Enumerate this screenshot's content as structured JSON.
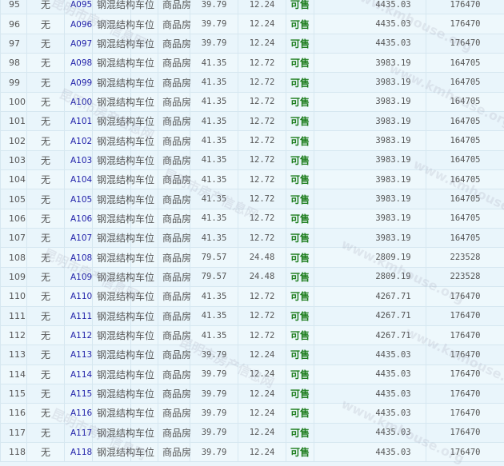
{
  "table": {
    "rows": [
      {
        "no": "95",
        "floor": "无",
        "code": "A095",
        "structure": "钢混结构",
        "use": "车位",
        "type": "商品房",
        "area": "39.79",
        "inner_area": "12.24",
        "status": "可售",
        "price": "4435.03",
        "total": "176470"
      },
      {
        "no": "96",
        "floor": "无",
        "code": "A096",
        "structure": "钢混结构",
        "use": "车位",
        "type": "商品房",
        "area": "39.79",
        "inner_area": "12.24",
        "status": "可售",
        "price": "4435.03",
        "total": "176470"
      },
      {
        "no": "97",
        "floor": "无",
        "code": "A097",
        "structure": "钢混结构",
        "use": "车位",
        "type": "商品房",
        "area": "39.79",
        "inner_area": "12.24",
        "status": "可售",
        "price": "4435.03",
        "total": "176470"
      },
      {
        "no": "98",
        "floor": "无",
        "code": "A098",
        "structure": "钢混结构",
        "use": "车位",
        "type": "商品房",
        "area": "41.35",
        "inner_area": "12.72",
        "status": "可售",
        "price": "3983.19",
        "total": "164705"
      },
      {
        "no": "99",
        "floor": "无",
        "code": "A099",
        "structure": "钢混结构",
        "use": "车位",
        "type": "商品房",
        "area": "41.35",
        "inner_area": "12.72",
        "status": "可售",
        "price": "3983.19",
        "total": "164705"
      },
      {
        "no": "100",
        "floor": "无",
        "code": "A100",
        "structure": "钢混结构",
        "use": "车位",
        "type": "商品房",
        "area": "41.35",
        "inner_area": "12.72",
        "status": "可售",
        "price": "3983.19",
        "total": "164705"
      },
      {
        "no": "101",
        "floor": "无",
        "code": "A101",
        "structure": "钢混结构",
        "use": "车位",
        "type": "商品房",
        "area": "41.35",
        "inner_area": "12.72",
        "status": "可售",
        "price": "3983.19",
        "total": "164705"
      },
      {
        "no": "102",
        "floor": "无",
        "code": "A102",
        "structure": "钢混结构",
        "use": "车位",
        "type": "商品房",
        "area": "41.35",
        "inner_area": "12.72",
        "status": "可售",
        "price": "3983.19",
        "total": "164705"
      },
      {
        "no": "103",
        "floor": "无",
        "code": "A103",
        "structure": "钢混结构",
        "use": "车位",
        "type": "商品房",
        "area": "41.35",
        "inner_area": "12.72",
        "status": "可售",
        "price": "3983.19",
        "total": "164705"
      },
      {
        "no": "104",
        "floor": "无",
        "code": "A104",
        "structure": "钢混结构",
        "use": "车位",
        "type": "商品房",
        "area": "41.35",
        "inner_area": "12.72",
        "status": "可售",
        "price": "3983.19",
        "total": "164705"
      },
      {
        "no": "105",
        "floor": "无",
        "code": "A105",
        "structure": "钢混结构",
        "use": "车位",
        "type": "商品房",
        "area": "41.35",
        "inner_area": "12.72",
        "status": "可售",
        "price": "3983.19",
        "total": "164705"
      },
      {
        "no": "106",
        "floor": "无",
        "code": "A106",
        "structure": "钢混结构",
        "use": "车位",
        "type": "商品房",
        "area": "41.35",
        "inner_area": "12.72",
        "status": "可售",
        "price": "3983.19",
        "total": "164705"
      },
      {
        "no": "107",
        "floor": "无",
        "code": "A107",
        "structure": "钢混结构",
        "use": "车位",
        "type": "商品房",
        "area": "41.35",
        "inner_area": "12.72",
        "status": "可售",
        "price": "3983.19",
        "total": "164705"
      },
      {
        "no": "108",
        "floor": "无",
        "code": "A108",
        "structure": "钢混结构",
        "use": "车位",
        "type": "商品房",
        "area": "79.57",
        "inner_area": "24.48",
        "status": "可售",
        "price": "2809.19",
        "total": "223528"
      },
      {
        "no": "109",
        "floor": "无",
        "code": "A109",
        "structure": "钢混结构",
        "use": "车位",
        "type": "商品房",
        "area": "79.57",
        "inner_area": "24.48",
        "status": "可售",
        "price": "2809.19",
        "total": "223528"
      },
      {
        "no": "110",
        "floor": "无",
        "code": "A110",
        "structure": "钢混结构",
        "use": "车位",
        "type": "商品房",
        "area": "41.35",
        "inner_area": "12.72",
        "status": "可售",
        "price": "4267.71",
        "total": "176470"
      },
      {
        "no": "111",
        "floor": "无",
        "code": "A111",
        "structure": "钢混结构",
        "use": "车位",
        "type": "商品房",
        "area": "41.35",
        "inner_area": "12.72",
        "status": "可售",
        "price": "4267.71",
        "total": "176470"
      },
      {
        "no": "112",
        "floor": "无",
        "code": "A112",
        "structure": "钢混结构",
        "use": "车位",
        "type": "商品房",
        "area": "41.35",
        "inner_area": "12.72",
        "status": "可售",
        "price": "4267.71",
        "total": "176470"
      },
      {
        "no": "113",
        "floor": "无",
        "code": "A113",
        "structure": "钢混结构",
        "use": "车位",
        "type": "商品房",
        "area": "39.79",
        "inner_area": "12.24",
        "status": "可售",
        "price": "4435.03",
        "total": "176470"
      },
      {
        "no": "114",
        "floor": "无",
        "code": "A114",
        "structure": "钢混结构",
        "use": "车位",
        "type": "商品房",
        "area": "39.79",
        "inner_area": "12.24",
        "status": "可售",
        "price": "4435.03",
        "total": "176470"
      },
      {
        "no": "115",
        "floor": "无",
        "code": "A115",
        "structure": "钢混结构",
        "use": "车位",
        "type": "商品房",
        "area": "39.79",
        "inner_area": "12.24",
        "status": "可售",
        "price": "4435.03",
        "total": "176470"
      },
      {
        "no": "116",
        "floor": "无",
        "code": "A116",
        "structure": "钢混结构",
        "use": "车位",
        "type": "商品房",
        "area": "39.79",
        "inner_area": "12.24",
        "status": "可售",
        "price": "4435.03",
        "total": "176470"
      },
      {
        "no": "117",
        "floor": "无",
        "code": "A117",
        "structure": "钢混结构",
        "use": "车位",
        "type": "商品房",
        "area": "39.79",
        "inner_area": "12.24",
        "status": "可售",
        "price": "4435.03",
        "total": "176470"
      },
      {
        "no": "118",
        "floor": "无",
        "code": "A118",
        "structure": "钢混结构",
        "use": "车位",
        "type": "商品房",
        "area": "39.79",
        "inner_area": "12.24",
        "status": "可售",
        "price": "4435.03",
        "total": "176470"
      }
    ]
  },
  "colors": {
    "link": "#2222aa",
    "status_available": "#1d7d1d",
    "background": "#eaf5fb",
    "border": "#d6e7f0"
  },
  "watermark": {
    "cn": "昆明市房产信息网",
    "en": "www.kmhouse.org"
  }
}
